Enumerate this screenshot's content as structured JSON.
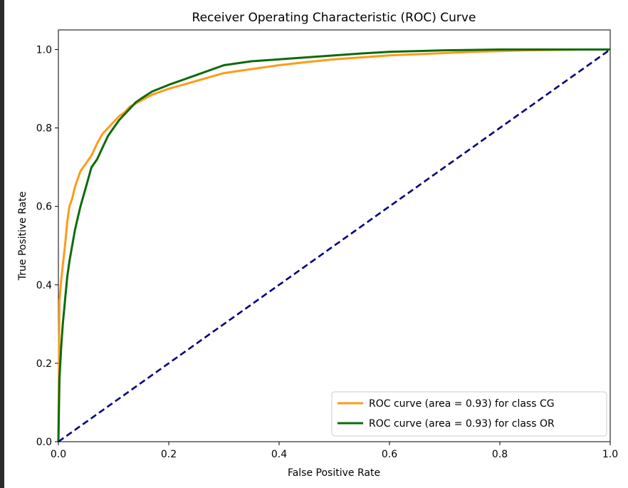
{
  "chart_data": {
    "type": "line",
    "title": "Receiver Operating Characteristic (ROC) Curve",
    "xlabel": "False Positive Rate",
    "ylabel": "True Positive Rate",
    "xlim": [
      0.0,
      1.0
    ],
    "ylim": [
      0.0,
      1.05
    ],
    "xticks": [
      0.0,
      0.2,
      0.4,
      0.6,
      0.8,
      1.0
    ],
    "yticks": [
      0.0,
      0.2,
      0.4,
      0.6,
      0.8,
      1.0
    ],
    "xtick_labels": [
      "0.0",
      "0.2",
      "0.4",
      "0.6",
      "0.8",
      "1.0"
    ],
    "ytick_labels": [
      "0.0",
      "0.2",
      "0.4",
      "0.6",
      "0.8",
      "1.0"
    ],
    "grid": false,
    "legend_position": "lower-right",
    "series": [
      {
        "name": "ROC curve (area = 0.93) for class CG",
        "color": "#ff9a1a",
        "style": "solid",
        "x": [
          0,
          0.002,
          0.005,
          0.008,
          0.012,
          0.016,
          0.02,
          0.025,
          0.03,
          0.04,
          0.05,
          0.06,
          0.07,
          0.08,
          0.09,
          0.1,
          0.11,
          0.12,
          0.13,
          0.14,
          0.15,
          0.17,
          0.2,
          0.25,
          0.3,
          0.35,
          0.4,
          0.45,
          0.5,
          0.55,
          0.6,
          0.65,
          0.7,
          0.75,
          0.8,
          0.85,
          0.9,
          0.95,
          1.0
        ],
        "y": [
          0,
          0.36,
          0.41,
          0.45,
          0.5,
          0.56,
          0.6,
          0.62,
          0.65,
          0.69,
          0.71,
          0.73,
          0.76,
          0.785,
          0.8,
          0.815,
          0.83,
          0.84,
          0.855,
          0.862,
          0.87,
          0.885,
          0.9,
          0.92,
          0.94,
          0.95,
          0.96,
          0.968,
          0.975,
          0.98,
          0.985,
          0.988,
          0.991,
          0.994,
          0.996,
          0.998,
          0.999,
          1.0,
          1.0
        ]
      },
      {
        "name": "ROC curve (area = 0.93) for class OR",
        "color": "#0b6b0b",
        "style": "solid",
        "x": [
          0,
          0.002,
          0.005,
          0.008,
          0.012,
          0.016,
          0.02,
          0.025,
          0.03,
          0.035,
          0.04,
          0.05,
          0.06,
          0.07,
          0.08,
          0.09,
          0.1,
          0.11,
          0.12,
          0.13,
          0.14,
          0.15,
          0.17,
          0.2,
          0.25,
          0.3,
          0.35,
          0.4,
          0.45,
          0.5,
          0.55,
          0.6,
          0.7,
          0.8,
          0.9,
          1.0
        ],
        "y": [
          0,
          0.16,
          0.24,
          0.3,
          0.36,
          0.42,
          0.46,
          0.5,
          0.54,
          0.57,
          0.6,
          0.65,
          0.7,
          0.72,
          0.75,
          0.78,
          0.8,
          0.82,
          0.835,
          0.85,
          0.865,
          0.875,
          0.893,
          0.91,
          0.935,
          0.96,
          0.97,
          0.975,
          0.98,
          0.985,
          0.99,
          0.994,
          0.998,
          1.0,
          1.0,
          1.0
        ]
      },
      {
        "name": "",
        "color": "#000080",
        "style": "dashed",
        "x": [
          0,
          1
        ],
        "y": [
          0,
          1
        ]
      }
    ]
  }
}
